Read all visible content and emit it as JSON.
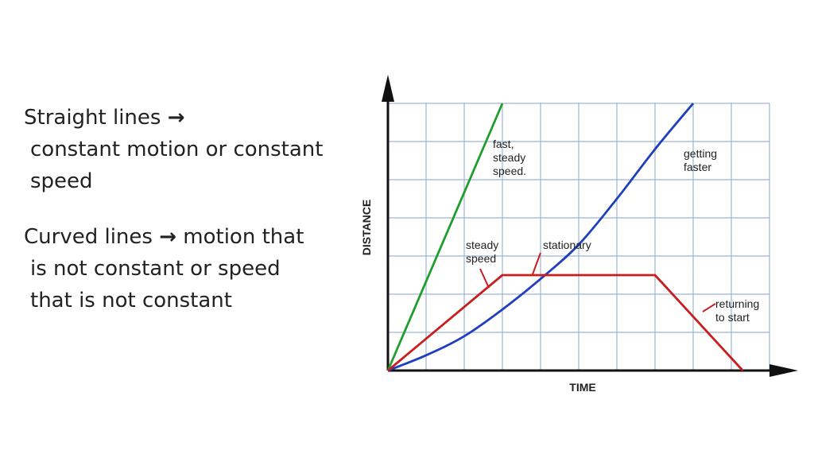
{
  "notes": {
    "straight": {
      "heading": "Straight lines",
      "arrow": "→",
      "line2": "constant motion or constant",
      "line3": "speed"
    },
    "curved": {
      "heading": "Curved lines",
      "arrow": "→",
      "heading_tail": "motion that",
      "line2": "is not constant or speed",
      "line3": "that is not constant"
    }
  },
  "chart_data": {
    "type": "line",
    "title": "",
    "xlabel": "TIME",
    "ylabel": "DISTANCE",
    "xlim": [
      0,
      10
    ],
    "ylim": [
      0,
      7
    ],
    "grid": true,
    "series": [
      {
        "name": "fast, steady speed.",
        "color": "#1f9e2e",
        "points": [
          [
            0,
            0
          ],
          [
            3,
            7
          ]
        ]
      },
      {
        "name": "getting faster",
        "color": "#1f3fbf",
        "points": [
          [
            0,
            0
          ],
          [
            1,
            0.4
          ],
          [
            2,
            0.9
          ],
          [
            3,
            1.6
          ],
          [
            4,
            2.4
          ],
          [
            5,
            3.3
          ],
          [
            6,
            4.5
          ],
          [
            7,
            5.8
          ],
          [
            8,
            7
          ]
        ]
      },
      {
        "name": "red",
        "color": "#c81e1e",
        "points": [
          [
            0,
            0
          ],
          [
            3,
            2.5
          ],
          [
            7,
            2.5
          ],
          [
            9.3,
            0
          ]
        ]
      }
    ],
    "annotations": [
      {
        "text": "fast,\nsteady\nspeed."
      },
      {
        "text": "getting\nfaster"
      },
      {
        "text": "steady\nspeed"
      },
      {
        "text": "stationary"
      },
      {
        "text": "returning\nto start"
      }
    ]
  }
}
